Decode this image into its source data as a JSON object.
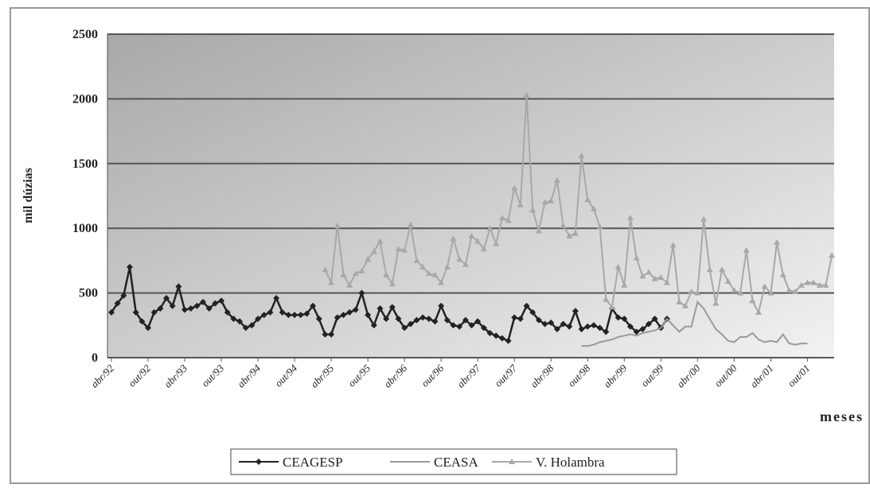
{
  "chart_data": {
    "type": "line",
    "y_label": "mil dúzias",
    "x_label": "meses",
    "ylim": [
      0,
      2500
    ],
    "yticks": [
      0,
      500,
      1000,
      1500,
      2000,
      2500
    ],
    "grid": true,
    "legend": "bottom",
    "categories": [
      "abr/92",
      null,
      null,
      null,
      null,
      null,
      "out/92",
      null,
      null,
      null,
      null,
      null,
      "abr/93",
      null,
      null,
      null,
      null,
      null,
      "out/93",
      null,
      null,
      null,
      null,
      null,
      "abr/94",
      null,
      null,
      null,
      null,
      null,
      "out/94",
      null,
      null,
      null,
      null,
      null,
      "abr/95",
      null,
      null,
      null,
      null,
      null,
      "out/95",
      null,
      null,
      null,
      null,
      null,
      "abr/96",
      null,
      null,
      null,
      null,
      null,
      "out/96",
      null,
      null,
      null,
      null,
      null,
      "abr/97",
      null,
      null,
      null,
      null,
      null,
      "out/97",
      null,
      null,
      null,
      null,
      null,
      "abr/98",
      null,
      null,
      null,
      null,
      null,
      "out/98",
      null,
      null,
      null,
      null,
      null,
      "abr/99",
      null,
      null,
      null,
      null,
      null,
      "out/99",
      null,
      null,
      null,
      null,
      null,
      "abr/00",
      null,
      null,
      null,
      null,
      null,
      "out/00",
      null,
      null,
      null,
      null,
      null,
      "abr/01",
      null,
      null,
      null,
      null,
      null,
      "out/01",
      null,
      null,
      null,
      null
    ],
    "series": [
      {
        "name": "CEAGESP",
        "color": "#222222",
        "marker": "diamond",
        "values": [
          350,
          420,
          480,
          700,
          350,
          280,
          230,
          350,
          380,
          460,
          400,
          550,
          370,
          380,
          400,
          430,
          380,
          420,
          440,
          350,
          300,
          280,
          230,
          250,
          300,
          330,
          350,
          460,
          350,
          330,
          330,
          330,
          340,
          400,
          300,
          180,
          180,
          310,
          330,
          350,
          370,
          500,
          330,
          250,
          380,
          300,
          390,
          300,
          230,
          260,
          290,
          310,
          300,
          280,
          400,
          290,
          250,
          240,
          290,
          250,
          280,
          230,
          190,
          170,
          150,
          130,
          310,
          300,
          400,
          350,
          290,
          260,
          270,
          220,
          260,
          240,
          360,
          220,
          240,
          250,
          230,
          200,
          380,
          310,
          300,
          240,
          200,
          220,
          260,
          300,
          230,
          300,
          null,
          null,
          null,
          null,
          null,
          null,
          null,
          null,
          null,
          null,
          null,
          null,
          null,
          null,
          null,
          null,
          null,
          null,
          null,
          null,
          null,
          null,
          null,
          null,
          null,
          null,
          null
        ]
      },
      {
        "name": "CEASA",
        "color": "#9a9a9a",
        "marker": "none",
        "values": [
          null,
          null,
          null,
          null,
          null,
          null,
          null,
          null,
          null,
          null,
          null,
          null,
          null,
          null,
          null,
          null,
          null,
          null,
          null,
          null,
          null,
          null,
          null,
          null,
          null,
          null,
          null,
          null,
          null,
          null,
          null,
          null,
          null,
          null,
          null,
          null,
          null,
          null,
          null,
          null,
          null,
          null,
          null,
          null,
          null,
          null,
          null,
          null,
          null,
          null,
          null,
          null,
          null,
          null,
          null,
          null,
          null,
          null,
          null,
          null,
          null,
          null,
          null,
          null,
          null,
          null,
          null,
          null,
          null,
          null,
          null,
          null,
          null,
          null,
          null,
          null,
          null,
          90,
          90,
          100,
          120,
          130,
          140,
          160,
          170,
          180,
          170,
          190,
          200,
          210,
          230,
          300,
          250,
          200,
          240,
          240,
          430,
          380,
          300,
          220,
          180,
          130,
          120,
          160,
          160,
          190,
          140,
          120,
          130,
          120,
          180,
          110,
          100,
          110,
          110,
          null,
          null,
          null,
          null
        ]
      },
      {
        "name": "V. Holambra",
        "color": "#a8a8a8",
        "marker": "triangle",
        "values": [
          null,
          null,
          null,
          null,
          null,
          null,
          null,
          null,
          null,
          null,
          null,
          null,
          null,
          null,
          null,
          null,
          null,
          null,
          null,
          null,
          null,
          null,
          null,
          null,
          null,
          null,
          null,
          null,
          null,
          null,
          null,
          null,
          null,
          null,
          null,
          680,
          580,
          1020,
          640,
          560,
          650,
          670,
          760,
          820,
          900,
          640,
          570,
          840,
          830,
          1030,
          750,
          700,
          650,
          640,
          580,
          700,
          920,
          760,
          720,
          940,
          900,
          840,
          1000,
          880,
          1080,
          1060,
          1310,
          1180,
          2030,
          1140,
          980,
          1200,
          1210,
          1370,
          1020,
          940,
          960,
          1560,
          1220,
          1150,
          1010,
          450,
          390,
          700,
          560,
          1080,
          770,
          630,
          660,
          610,
          620,
          580,
          870,
          430,
          400,
          510,
          500,
          1070,
          680,
          420,
          680,
          590,
          520,
          500,
          830,
          440,
          350,
          550,
          500,
          890,
          640,
          520,
          510,
          560,
          580,
          580,
          560,
          560,
          790
        ]
      }
    ]
  }
}
